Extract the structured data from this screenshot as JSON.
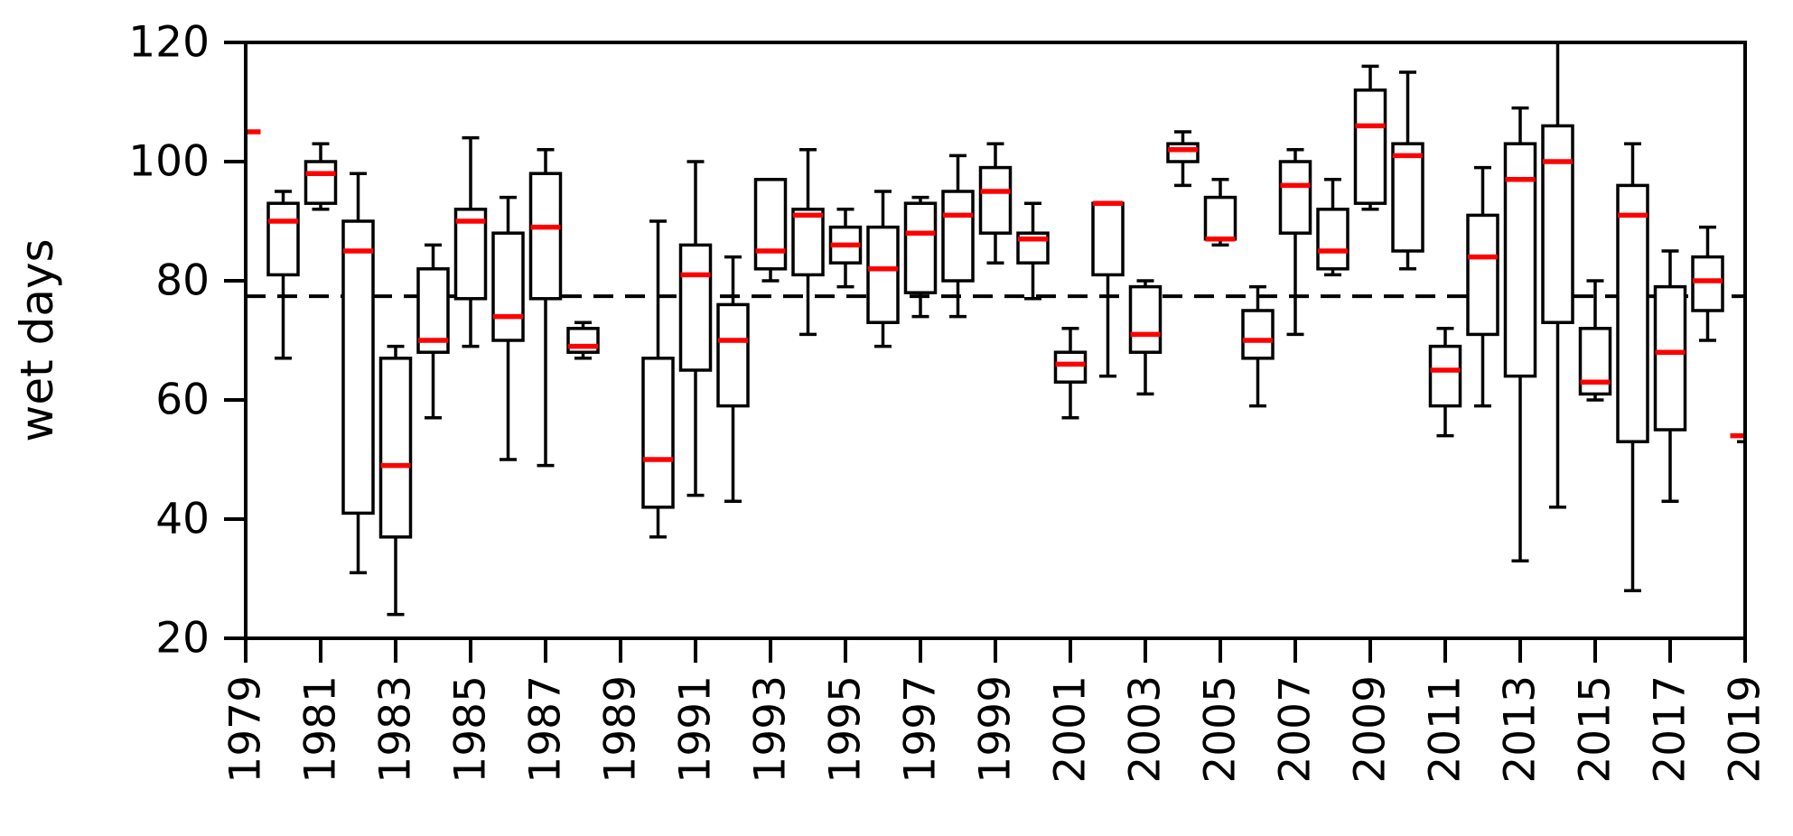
{
  "figure": {
    "background": "#ffffff"
  },
  "colors": {
    "box_stroke": "#000000",
    "median": "#ff0000",
    "axis": "#000000",
    "reference_line": "#000000"
  },
  "chart_data": {
    "type": "boxplot",
    "title": "",
    "xlabel": "",
    "ylabel": "wet days",
    "ylim": [
      20,
      120
    ],
    "yticks": [
      20,
      40,
      60,
      80,
      100,
      120
    ],
    "x_tick_years": [
      1979,
      1981,
      1983,
      1985,
      1987,
      1989,
      1991,
      1993,
      1995,
      1997,
      1999,
      2001,
      2003,
      2005,
      2007,
      2009,
      2011,
      2013,
      2015,
      2017,
      2019
    ],
    "x_tick_labels": [
      "1979",
      "1981",
      "1983",
      "1985",
      "1987",
      "1989",
      "1991",
      "1993",
      "1995",
      "1997",
      "1999",
      "2001",
      "2003",
      "2005",
      "2007",
      "2009",
      "2011",
      "2013",
      "2015",
      "2017",
      "2019"
    ],
    "reference_line": {
      "value": 77.4,
      "style": "dashed"
    },
    "grid": false,
    "legend": "none",
    "years": [
      {
        "year": 1979,
        "median_only": true,
        "median": 105,
        "clipped": "left"
      },
      {
        "year": 1980,
        "whisker_low": 67,
        "q1": 81,
        "median": 90,
        "q3": 93,
        "whisker_high": 95
      },
      {
        "year": 1981,
        "whisker_low": 92,
        "q1": 93,
        "median": 98,
        "q3": 100,
        "whisker_high": 103
      },
      {
        "year": 1982,
        "whisker_low": 31,
        "q1": 41,
        "median": 85,
        "q3": 90,
        "whisker_high": 98
      },
      {
        "year": 1983,
        "whisker_low": 24,
        "q1": 37,
        "median": 49,
        "q3": 67,
        "whisker_high": 69
      },
      {
        "year": 1984,
        "whisker_low": 57,
        "q1": 68,
        "median": 70,
        "q3": 82,
        "whisker_high": 86
      },
      {
        "year": 1985,
        "whisker_low": 69,
        "q1": 77,
        "median": 90,
        "q3": 92,
        "whisker_high": 104
      },
      {
        "year": 1986,
        "whisker_low": 50,
        "q1": 70,
        "median": 74,
        "q3": 88,
        "whisker_high": 94
      },
      {
        "year": 1987,
        "whisker_low": 49,
        "q1": 77,
        "median": 89,
        "q3": 98,
        "whisker_high": 102
      },
      {
        "year": 1988,
        "whisker_low": 67,
        "q1": 68,
        "median": 69,
        "q3": 72,
        "whisker_high": 73
      },
      {
        "year": 1989,
        "no_data": true
      },
      {
        "year": 1990,
        "whisker_low": 37,
        "q1": 42,
        "median": 50,
        "q3": 67,
        "whisker_high": 90
      },
      {
        "year": 1991,
        "whisker_low": 44,
        "q1": 65,
        "median": 81,
        "q3": 86,
        "whisker_high": 100
      },
      {
        "year": 1992,
        "whisker_low": 43,
        "q1": 59,
        "median": 70,
        "q3": 76,
        "whisker_high": 84
      },
      {
        "year": 1993,
        "whisker_low": 80,
        "q1": 82,
        "median": 85,
        "q3": 97,
        "whisker_high": 97
      },
      {
        "year": 1994,
        "whisker_low": 71,
        "q1": 81,
        "median": 91,
        "q3": 92,
        "whisker_high": 102
      },
      {
        "year": 1995,
        "whisker_low": 79,
        "q1": 83,
        "median": 86,
        "q3": 89,
        "whisker_high": 92
      },
      {
        "year": 1996,
        "whisker_low": 69,
        "q1": 73,
        "median": 82,
        "q3": 89,
        "whisker_high": 95
      },
      {
        "year": 1997,
        "whisker_low": 74,
        "q1": 78,
        "median": 88,
        "q3": 93,
        "whisker_high": 94
      },
      {
        "year": 1998,
        "whisker_low": 74,
        "q1": 80,
        "median": 91,
        "q3": 95,
        "whisker_high": 101
      },
      {
        "year": 1999,
        "whisker_low": 83,
        "q1": 88,
        "median": 95,
        "q3": 99,
        "whisker_high": 103
      },
      {
        "year": 2000,
        "whisker_low": 77,
        "q1": 83,
        "median": 87,
        "q3": 88,
        "whisker_high": 93
      },
      {
        "year": 2001,
        "whisker_low": 57,
        "q1": 63,
        "median": 66,
        "q3": 68,
        "whisker_high": 72
      },
      {
        "year": 2002,
        "whisker_low": 64,
        "q1": 81,
        "median": 93,
        "q3": 93,
        "whisker_high": 93
      },
      {
        "year": 2003,
        "whisker_low": 61,
        "q1": 68,
        "median": 71,
        "q3": 79,
        "whisker_high": 80
      },
      {
        "year": 2004,
        "whisker_low": 96,
        "q1": 100,
        "median": 102,
        "q3": 103,
        "whisker_high": 105
      },
      {
        "year": 2005,
        "whisker_low": 86,
        "q1": 87,
        "median": 87,
        "q3": 94,
        "whisker_high": 97
      },
      {
        "year": 2006,
        "whisker_low": 59,
        "q1": 67,
        "median": 70,
        "q3": 75,
        "whisker_high": 79
      },
      {
        "year": 2007,
        "whisker_low": 71,
        "q1": 88,
        "median": 96,
        "q3": 100,
        "whisker_high": 102
      },
      {
        "year": 2008,
        "whisker_low": 81,
        "q1": 82,
        "median": 85,
        "q3": 92,
        "whisker_high": 97
      },
      {
        "year": 2009,
        "whisker_low": 92,
        "q1": 93,
        "median": 106,
        "q3": 112,
        "whisker_high": 116
      },
      {
        "year": 2010,
        "whisker_low": 82,
        "q1": 85,
        "median": 101,
        "q3": 103,
        "whisker_high": 115
      },
      {
        "year": 2011,
        "whisker_low": 54,
        "q1": 59,
        "median": 65,
        "q3": 69,
        "whisker_high": 72
      },
      {
        "year": 2012,
        "whisker_low": 59,
        "q1": 71,
        "median": 84,
        "q3": 91,
        "whisker_high": 99
      },
      {
        "year": 2013,
        "whisker_low": 33,
        "q1": 64,
        "median": 97,
        "q3": 103,
        "whisker_high": 109
      },
      {
        "year": 2014,
        "whisker_low": 42,
        "q1": 73,
        "median": 100,
        "q3": 106,
        "whisker_high": 120,
        "cap_high": false,
        "clipped_top": true
      },
      {
        "year": 2015,
        "whisker_low": 60,
        "q1": 61,
        "median": 63,
        "q3": 72,
        "whisker_high": 80
      },
      {
        "year": 2016,
        "whisker_low": 28,
        "q1": 53,
        "median": 91,
        "q3": 96,
        "whisker_high": 103
      },
      {
        "year": 2017,
        "whisker_low": 43,
        "q1": 55,
        "median": 68,
        "q3": 79,
        "whisker_high": 85
      },
      {
        "year": 2018,
        "whisker_low": 70,
        "q1": 75,
        "median": 80,
        "q3": 84,
        "whisker_high": 89
      },
      {
        "year": 2019,
        "median_only": true,
        "median": 54,
        "extra_cap": 53,
        "clipped": "right"
      }
    ]
  }
}
